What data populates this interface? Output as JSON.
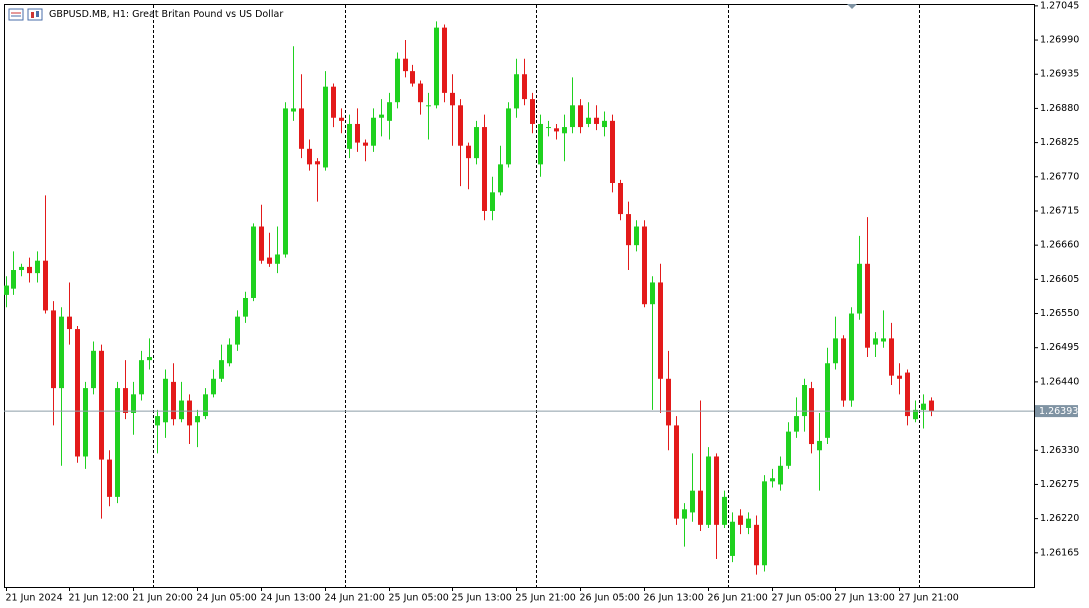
{
  "chart_data": {
    "type": "candlestick",
    "title": "GBPUSD.MB, H1:  Great Britan Pound vs US Dollar",
    "categories": [
      "21 Jun 2024",
      null,
      null,
      null,
      null,
      null,
      null,
      null,
      "21 Jun 12:00",
      null,
      null,
      null,
      null,
      null,
      null,
      null,
      "21 Jun 20:00",
      null,
      null,
      null,
      null,
      null,
      null,
      null,
      "24 Jun 05:00",
      null,
      null,
      null,
      null,
      null,
      null,
      null,
      "24 Jun 13:00",
      null,
      null,
      null,
      null,
      null,
      null,
      null,
      "24 Jun 21:00",
      null,
      null,
      null,
      null,
      null,
      null,
      null,
      "25 Jun 05:00",
      null,
      null,
      null,
      null,
      null,
      null,
      null,
      "25 Jun 13:00",
      null,
      null,
      null,
      null,
      null,
      null,
      null,
      "25 Jun 21:00",
      null,
      null,
      null,
      null,
      null,
      null,
      null,
      "26 Jun 05:00",
      null,
      null,
      null,
      null,
      null,
      null,
      null,
      "26 Jun 13:00",
      null,
      null,
      null,
      null,
      null,
      null,
      null,
      "26 Jun 21:00",
      null,
      null,
      null,
      null,
      null,
      null,
      null,
      "27 Jun 05:00",
      null,
      null,
      null,
      null,
      null,
      null,
      null,
      "27 Jun 13:00",
      null,
      null,
      null,
      null,
      null,
      null,
      null,
      "27 Jun 21:00",
      null,
      null,
      null,
      null
    ],
    "open": [
      1.2658,
      1.2659,
      1.2662,
      1.26625,
      1.26615,
      1.26635,
      1.26555,
      1.2643,
      1.26545,
      1.26525,
      1.2632,
      1.2643,
      1.2649,
      1.26315,
      1.26255,
      1.2643,
      1.2639,
      1.2642,
      1.26475,
      1.2637,
      1.26375,
      1.2644,
      1.2638,
      1.2641,
      1.26375,
      1.26385,
      1.2642,
      1.26445,
      1.2647,
      1.265,
      1.26545,
      1.26575,
      1.2669,
      1.2664,
      1.2663,
      1.26645,
      1.26875,
      1.2688,
      1.26815,
      1.26795,
      1.26785,
      1.26915,
      1.26865,
      1.26815,
      1.26855,
      1.26825,
      1.2682,
      1.26865,
      1.2686,
      1.2689,
      1.2696,
      1.2694,
      1.2692,
      1.26885,
      1.26885,
      1.2701,
      1.26905,
      1.26885,
      1.2682,
      1.268,
      1.2685,
      1.26715,
      1.26745,
      1.2679,
      1.2688,
      1.26935,
      1.26895,
      1.2679,
      1.2685,
      1.26848,
      1.2684,
      1.2685,
      1.26885,
      1.26855,
      1.26865,
      1.2685,
      1.2686,
      1.2676,
      1.2671,
      1.2666,
      1.2669,
      1.26565,
      1.266,
      1.26445,
      1.2637,
      1.2622,
      1.2623,
      1.26265,
      1.2621,
      1.2632,
      1.2621,
      1.2616,
      1.26225,
      1.26205,
      1.2621,
      1.26145,
      1.2628,
      1.26275,
      1.26305,
      1.2636,
      1.26385,
      1.2643,
      1.2633,
      1.2635,
      1.2647,
      1.2651,
      1.2641,
      1.2655,
      1.2663,
      1.265,
      1.26505,
      1.2651,
      1.2645,
      1.26455,
      1.2638,
      1.26395,
      1.2641
    ],
    "high": [
      1.2661,
      1.2665,
      1.2663,
      1.2664,
      1.2665,
      1.2674,
      1.2657,
      1.2656,
      1.266,
      1.2653,
      1.2644,
      1.26505,
      1.265,
      1.2633,
      1.2644,
      1.26475,
      1.2644,
      1.2649,
      1.2651,
      1.26395,
      1.2646,
      1.2647,
      1.2644,
      1.2642,
      1.26395,
      1.2643,
      1.2646,
      1.265,
      1.2651,
      1.26555,
      1.26585,
      1.26695,
      1.26725,
      1.2668,
      1.2669,
      1.2689,
      1.2698,
      1.26935,
      1.2683,
      1.268,
      1.2694,
      1.2692,
      1.2688,
      1.2687,
      1.2688,
      1.2683,
      1.2688,
      1.26895,
      1.26905,
      1.2697,
      1.2699,
      1.2695,
      1.26925,
      1.26905,
      1.2702,
      1.27015,
      1.26935,
      1.26895,
      1.26825,
      1.2686,
      1.2687,
      1.2677,
      1.2682,
      1.2689,
      1.2696,
      1.2696,
      1.26905,
      1.2687,
      1.2686,
      1.26855,
      1.2687,
      1.2693,
      1.26895,
      1.2689,
      1.26885,
      1.26875,
      1.2687,
      1.26765,
      1.2673,
      1.267,
      1.267,
      1.2661,
      1.2663,
      1.2649,
      1.26385,
      1.26245,
      1.26325,
      1.2641,
      1.26335,
      1.26325,
      1.26265,
      1.2623,
      1.26235,
      1.2623,
      1.26225,
      1.2629,
      1.263,
      1.2632,
      1.26375,
      1.26415,
      1.26445,
      1.2644,
      1.2639,
      1.26495,
      1.26545,
      1.26515,
      1.2656,
      1.26675,
      1.26705,
      1.2652,
      1.26555,
      1.26535,
      1.2647,
      1.2646,
      1.2641,
      1.2642,
      1.26415
    ],
    "low": [
      1.2656,
      1.2658,
      1.2661,
      1.266,
      1.266,
      1.2655,
      1.2637,
      1.26305,
      1.265,
      1.2631,
      1.263,
      1.2642,
      1.2622,
      1.2624,
      1.26245,
      1.2638,
      1.26355,
      1.2641,
      1.2646,
      1.26325,
      1.2635,
      1.2637,
      1.26375,
      1.2634,
      1.26335,
      1.2638,
      1.26415,
      1.2644,
      1.26465,
      1.2649,
      1.26535,
      1.2657,
      1.2663,
      1.26625,
      1.26615,
      1.2664,
      1.2686,
      1.268,
      1.2678,
      1.2673,
      1.2678,
      1.2685,
      1.2684,
      1.268,
      1.2681,
      1.26795,
      1.2681,
      1.26835,
      1.2683,
      1.2688,
      1.2693,
      1.26915,
      1.2687,
      1.2683,
      1.2688,
      1.2689,
      1.2682,
      1.26755,
      1.2675,
      1.2679,
      1.267,
      1.267,
      1.2674,
      1.26785,
      1.26865,
      1.26885,
      1.2684,
      1.2677,
      1.26835,
      1.2683,
      1.26795,
      1.2684,
      1.2684,
      1.2685,
      1.26845,
      1.26835,
      1.26745,
      1.267,
      1.2662,
      1.2665,
      1.2656,
      1.26395,
      1.2639,
      1.2633,
      1.2621,
      1.26175,
      1.26215,
      1.262,
      1.26205,
      1.26155,
      1.26205,
      1.2615,
      1.26195,
      1.26195,
      1.2613,
      1.26135,
      1.2627,
      1.26265,
      1.263,
      1.2635,
      1.2636,
      1.26325,
      1.26265,
      1.2634,
      1.2646,
      1.264,
      1.264,
      1.2654,
      1.2648,
      1.2648,
      1.26495,
      1.26435,
      1.2642,
      1.2637,
      1.26375,
      1.26365,
      1.26385
    ],
    "close": [
      1.26595,
      1.2662,
      1.26625,
      1.26615,
      1.26635,
      1.26555,
      1.2643,
      1.26545,
      1.26525,
      1.2632,
      1.2643,
      1.2649,
      1.26315,
      1.26255,
      1.2643,
      1.2639,
      1.2642,
      1.26475,
      1.2648,
      1.26385,
      1.26445,
      1.2638,
      1.2641,
      1.2637,
      1.26385,
      1.2642,
      1.26445,
      1.26475,
      1.265,
      1.26545,
      1.26575,
      1.2669,
      1.26635,
      1.2663,
      1.26645,
      1.2688,
      1.2688,
      1.26815,
      1.2679,
      1.2679,
      1.26915,
      1.26865,
      1.2686,
      1.26855,
      1.26825,
      1.2682,
      1.26865,
      1.2687,
      1.2689,
      1.2696,
      1.2694,
      1.2692,
      1.2689,
      1.26885,
      1.2701,
      1.26905,
      1.26885,
      1.2682,
      1.268,
      1.2685,
      1.26715,
      1.26745,
      1.2679,
      1.2688,
      1.26935,
      1.26895,
      1.26855,
      1.26855,
      1.2685,
      1.26843,
      1.2685,
      1.26885,
      1.2685,
      1.26865,
      1.26855,
      1.2686,
      1.2676,
      1.2671,
      1.2666,
      1.2669,
      1.26565,
      1.266,
      1.26445,
      1.2637,
      1.2622,
      1.26235,
      1.26265,
      1.2621,
      1.2632,
      1.2621,
      1.26255,
      1.26215,
      1.2621,
      1.2622,
      1.26145,
      1.2628,
      1.26285,
      1.26305,
      1.2636,
      1.26385,
      1.26435,
      1.2634,
      1.26345,
      1.2647,
      1.2651,
      1.2641,
      1.2655,
      1.2663,
      1.26495,
      1.2651,
      1.2651,
      1.2645,
      1.26445,
      1.26385,
      1.26395,
      1.26405,
      1.26393
    ],
    "up_color": "#1fd11f",
    "down_color": "#e31a1a",
    "current_price": 1.26393,
    "ylim": [
      1.2611,
      1.27048
    ],
    "yticks": [
      1.26165,
      {
        "value": 1.2622,
        "label": "1.26220"
      },
      1.26275,
      {
        "value": 1.2633,
        "label": "1.26330"
      },
      {
        "value": 1.2644,
        "label": "1.26440"
      },
      1.26495,
      {
        "value": 1.2655,
        "label": "1.26550"
      },
      1.26605,
      {
        "value": 1.2666,
        "label": "1.26660"
      },
      1.26715,
      {
        "value": 1.2677,
        "label": "1.26770"
      },
      1.26825,
      {
        "value": 1.2688,
        "label": "1.26880"
      },
      1.26935,
      {
        "value": 1.2699,
        "label": "1.26990"
      },
      1.27045
    ],
    "grid": false
  }
}
